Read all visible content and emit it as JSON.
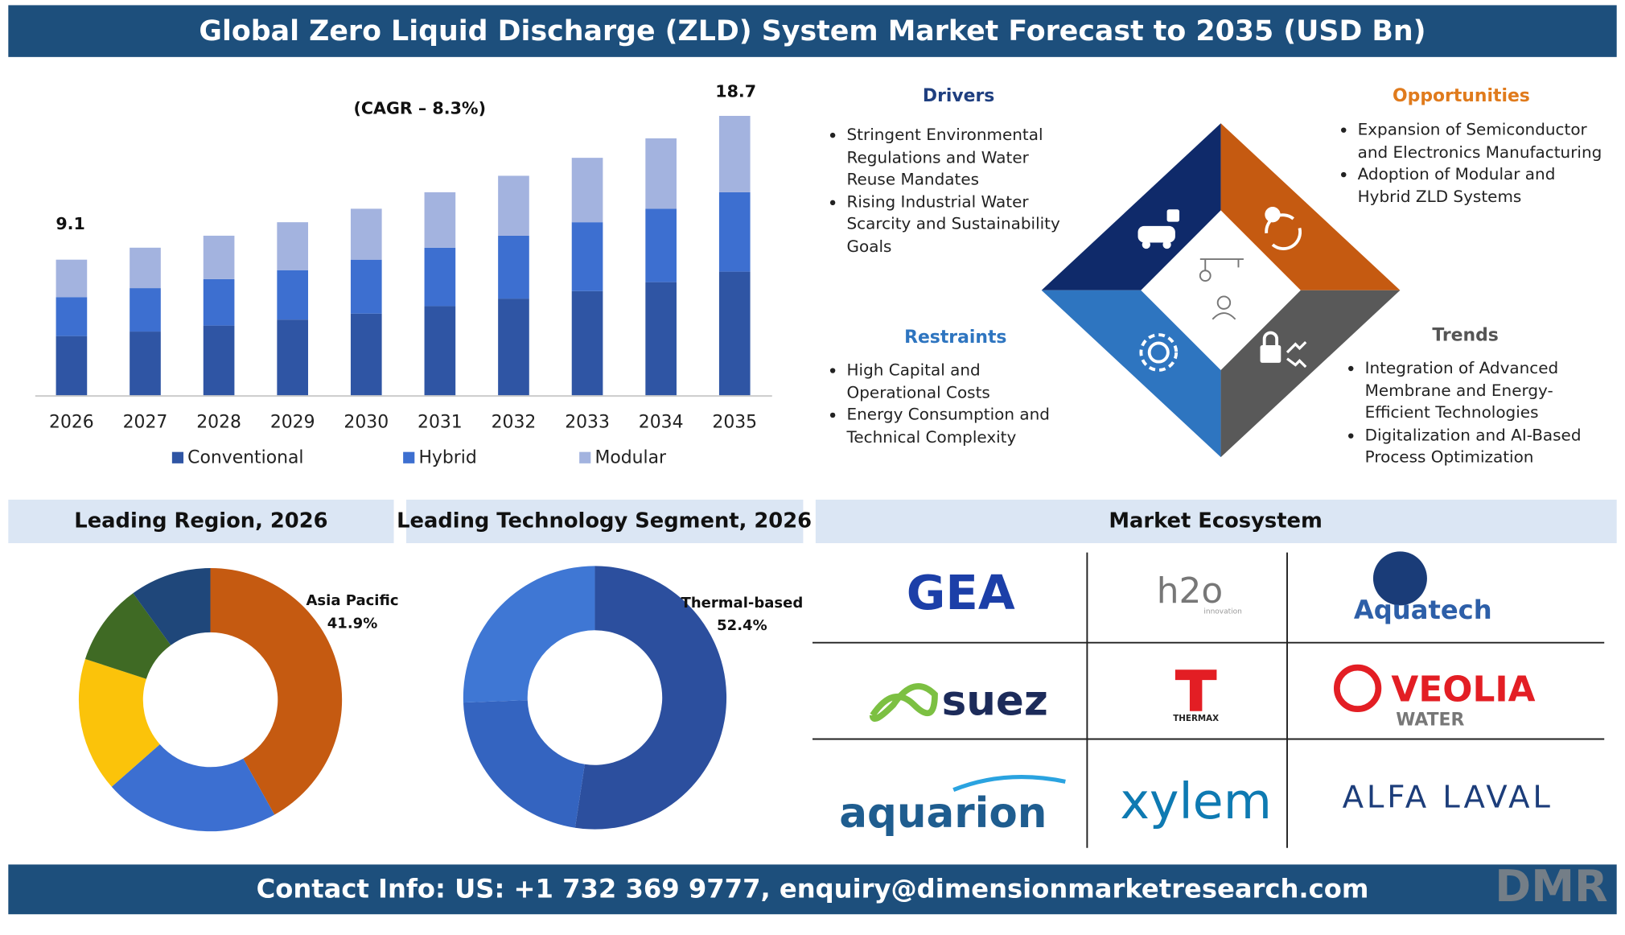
{
  "title": "Global Zero Liquid Discharge (ZLD) System Market Forecast to 2035 (USD Bn)",
  "chart_data": [
    {
      "type": "stacked_bar",
      "categories": [
        "2026",
        "2027",
        "2028",
        "2029",
        "2030",
        "2031",
        "2032",
        "2033",
        "2034",
        "2035"
      ],
      "series": [
        {
          "name": "Conventional",
          "color": "#2f55a4",
          "values": [
            4.0,
            4.3,
            4.7,
            5.1,
            5.5,
            6.0,
            6.5,
            7.0,
            7.6,
            8.3
          ]
        },
        {
          "name": "Hybrid",
          "color": "#3d6fd0",
          "values": [
            2.6,
            2.9,
            3.1,
            3.3,
            3.6,
            3.9,
            4.2,
            4.6,
            4.9,
            5.3
          ]
        },
        {
          "name": "Modular",
          "color": "#a3b3df",
          "values": [
            2.5,
            2.7,
            2.9,
            3.2,
            3.4,
            3.7,
            4.0,
            4.3,
            4.7,
            5.1
          ]
        }
      ],
      "annotations": [
        "(CAGR – 8.3%)",
        "9.1",
        "18.7"
      ],
      "ylim": [
        0,
        20
      ]
    },
    {
      "type": "donut",
      "title": "Leading Region, 2026",
      "categories": [
        "Asia Pacific",
        null,
        null,
        null,
        null
      ],
      "values": [
        41.9,
        21.6,
        16.5,
        10.0,
        10.0
      ],
      "value_labels": [
        "41.9%",
        null,
        null,
        null,
        null
      ],
      "colors": [
        "#c55a11",
        "#3c6fd1",
        "#fbc30a",
        "#3f6a24",
        "#1f477a"
      ]
    },
    {
      "type": "donut",
      "title": "Leading Technology Segment, 2026",
      "categories": [
        "Thermal-based",
        null,
        null
      ],
      "values": [
        52.4,
        22.0,
        25.6
      ],
      "value_labels": [
        "52.4%",
        null,
        null
      ],
      "colors": [
        "#2c4f9e",
        "#3464c0",
        "#3f77d4"
      ]
    }
  ],
  "factors": {
    "drivers": {
      "title": "Drivers",
      "items": [
        "Stringent Environmental Regulations and Water Reuse Mandates",
        "Rising Industrial Water Scarcity and Sustainability Goals"
      ]
    },
    "opportunities": {
      "title": "Opportunities",
      "items": [
        "Expansion of Semiconductor and Electronics Manufacturing",
        "Adoption of Modular and Hybrid ZLD Systems"
      ]
    },
    "restraints": {
      "title": "Restraints",
      "items": [
        "High Capital and Operational Costs",
        "Energy Consumption and Technical Complexity"
      ]
    },
    "trends": {
      "title": "Trends",
      "items": [
        "Integration of Advanced Membrane and Energy-Efficient Technologies",
        "Digitalization and AI-Based Process Optimization"
      ]
    }
  },
  "ecosystem": {
    "title": "Market Ecosystem",
    "logos": [
      {
        "text": "GEA"
      },
      {
        "text": "h2o",
        "sub": "innovation"
      },
      {
        "text": "Aquatech"
      },
      {
        "text": "suez"
      },
      {
        "text": "THERMAX"
      },
      {
        "text": "VEOLIA",
        "sub": "WATER"
      },
      {
        "text": "aquarion"
      },
      {
        "text": "xylem"
      },
      {
        "text": "ALFA LAVAL"
      }
    ]
  },
  "contact": "Contact Info: US: +1 732 369 9777, enquiry@dimensionmarketresearch.com",
  "brand": "DMR"
}
